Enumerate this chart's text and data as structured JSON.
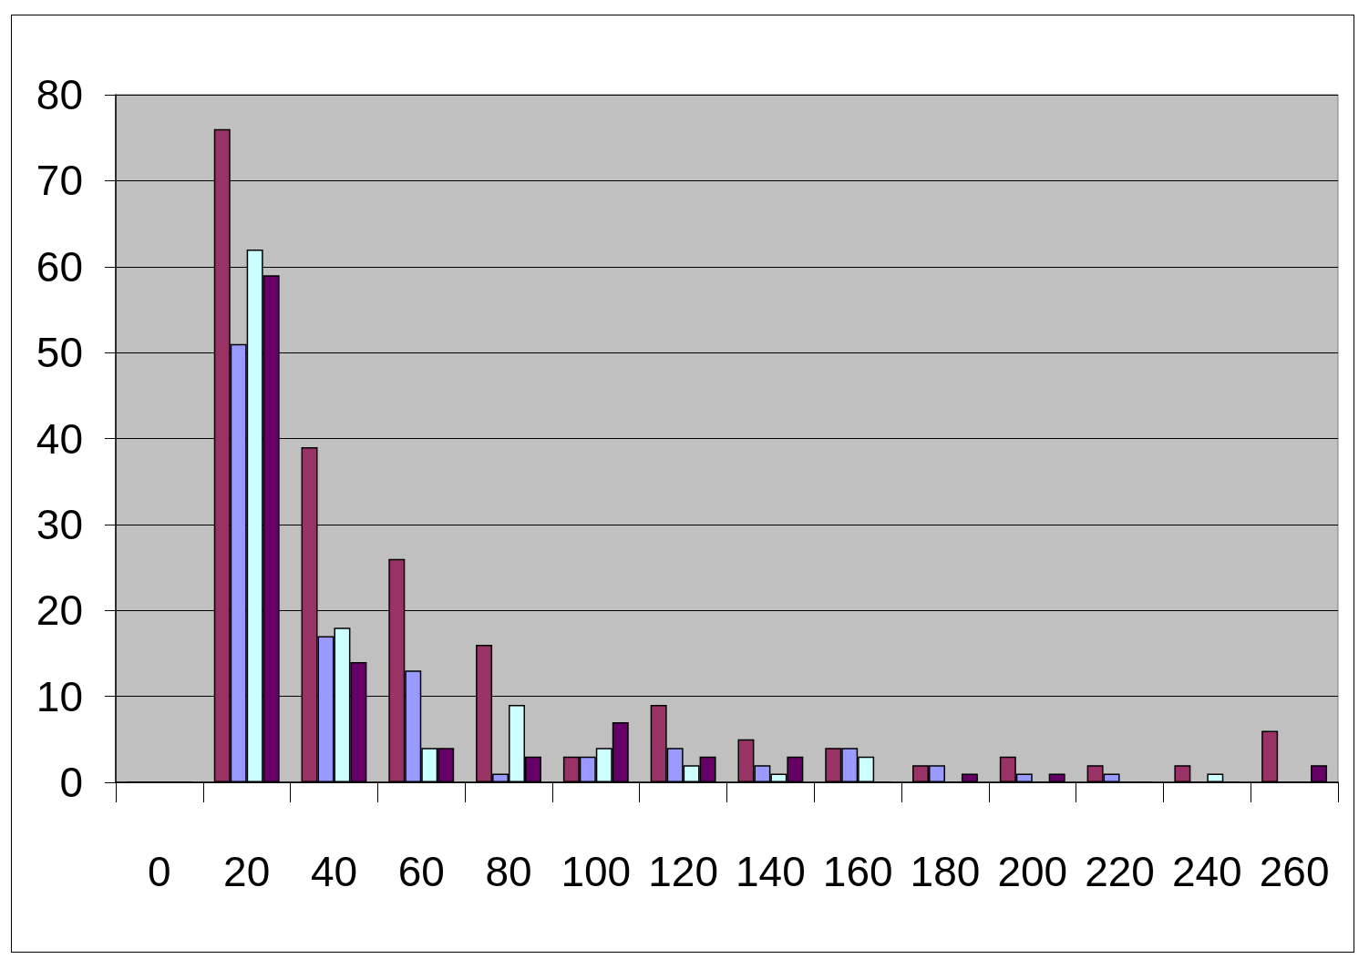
{
  "chart_data": {
    "type": "bar",
    "categories": [
      "0",
      "20",
      "40",
      "60",
      "80",
      "100",
      "120",
      "140",
      "160",
      "180",
      "200",
      "220",
      "240",
      "260"
    ],
    "series": [
      {
        "color": "#993366",
        "values": [
          0,
          76,
          39,
          26,
          16,
          3,
          9,
          5,
          4,
          2,
          3,
          2,
          2,
          6
        ]
      },
      {
        "color": "#9999ff",
        "values": [
          0,
          51,
          17,
          13,
          1,
          3,
          4,
          2,
          4,
          2,
          1,
          1,
          0,
          0
        ]
      },
      {
        "color": "#ccffff",
        "values": [
          0,
          62,
          18,
          4,
          9,
          4,
          2,
          1,
          3,
          0,
          0,
          0,
          1,
          0
        ]
      },
      {
        "color": "#660066",
        "values": [
          0,
          59,
          14,
          4,
          3,
          7,
          3,
          3,
          0,
          1,
          1,
          0,
          0,
          2
        ]
      }
    ],
    "ylim": [
      0,
      80
    ],
    "yticks": [
      0,
      10,
      20,
      30,
      40,
      50,
      60,
      70,
      80
    ],
    "grid": "y"
  }
}
